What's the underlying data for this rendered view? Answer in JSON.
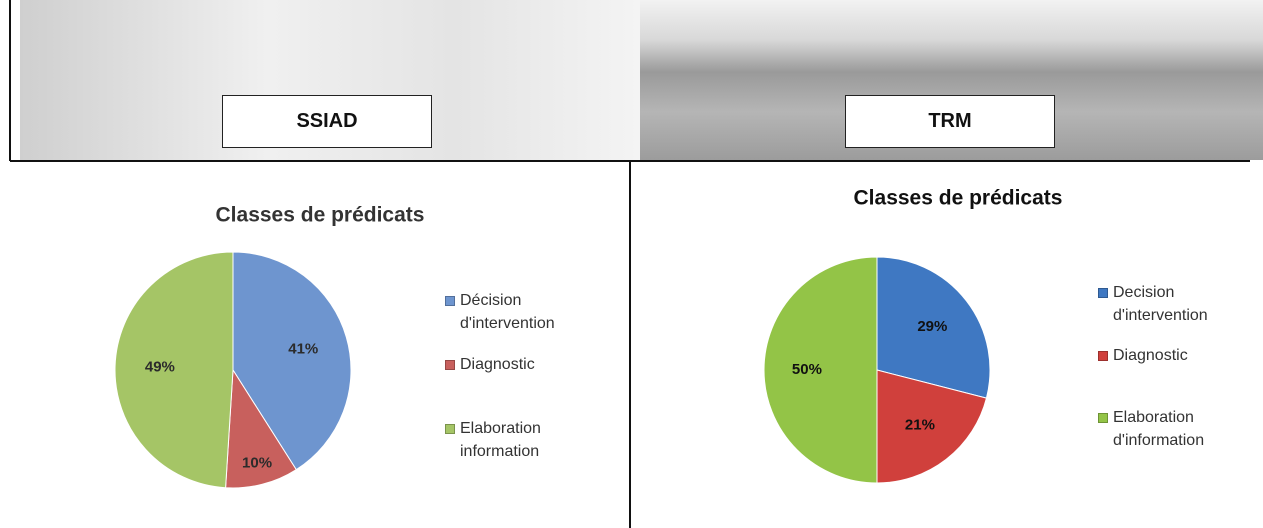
{
  "header": {
    "left": "SSIAD",
    "right": "TRM"
  },
  "chart_data": [
    {
      "type": "pie",
      "title": "Classes de prédicats",
      "categories": [
        "Décision d'intervention",
        "Diagnostic",
        "Elaboration information"
      ],
      "values": [
        41,
        10,
        49
      ],
      "value_labels": [
        "41%",
        "10%",
        "49%"
      ],
      "colors": [
        "#6e95cf",
        "#c8605d",
        "#a5c566"
      ]
    },
    {
      "type": "pie",
      "title": "Classes de prédicats",
      "categories": [
        "Decision d'intervention",
        "Diagnostic",
        "Elaboration d'information"
      ],
      "values": [
        29,
        21,
        50
      ],
      "value_labels": [
        "29%",
        "21%",
        "50%"
      ],
      "colors": [
        "#3f78c2",
        "#d0403c",
        "#93c447"
      ]
    }
  ]
}
